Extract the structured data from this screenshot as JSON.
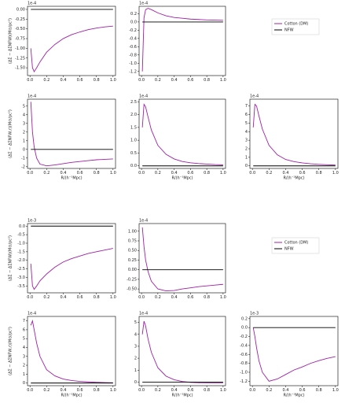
{
  "chart_data": [
    {
      "type": "line",
      "offset": "1e-4",
      "ylabel": "(ΔΣ − ΔΣNFW)(M⊙/pc²)",
      "x": [
        0.01,
        0.03,
        0.05,
        0.08,
        0.12,
        0.2,
        0.3,
        0.4,
        0.5,
        0.6,
        0.7,
        0.8,
        0.9,
        1.0
      ],
      "series": [
        {
          "name": "Cotton (DM)",
          "color": "#a020a8",
          "values": [
            -1.0,
            -1.5,
            -1.6,
            -1.5,
            -1.35,
            -1.1,
            -0.9,
            -0.75,
            -0.65,
            -0.58,
            -0.52,
            -0.48,
            -0.45,
            -0.43
          ]
        },
        {
          "name": "NFW",
          "color": "#000000",
          "values": [
            0,
            0,
            0,
            0,
            0,
            0,
            0,
            0,
            0,
            0,
            0,
            0,
            0,
            0
          ]
        }
      ],
      "xlim": [
        -0.03,
        1.03
      ],
      "xticks": [
        {
          "value": 0,
          "label": "0.0"
        },
        0.2,
        0.4,
        0.6,
        0.8,
        {
          "value": 1,
          "label": "1.0"
        }
      ],
      "ylim": [
        -1.7,
        0.08
      ],
      "yticks": [
        {
          "value": 0,
          "label": "0.00"
        },
        -0.25,
        {
          "value": -0.5,
          "label": "-0.50"
        },
        -0.75,
        {
          "value": -1,
          "label": "-1.00"
        },
        -1.25,
        {
          "value": -1.5,
          "label": "-1.50"
        }
      ]
    },
    {
      "type": "line",
      "offset": "1e-4",
      "x": [
        0.01,
        0.03,
        0.05,
        0.08,
        0.12,
        0.2,
        0.3,
        0.4,
        0.5,
        0.6,
        0.7,
        0.8,
        0.9,
        1.0
      ],
      "series": [
        {
          "name": "Cotton (DM)",
          "color": "#a020a8",
          "values": [
            -1.2,
            0.1,
            0.3,
            0.33,
            0.3,
            0.22,
            0.15,
            0.11,
            0.09,
            0.07,
            0.06,
            0.05,
            0.045,
            0.04
          ]
        },
        {
          "name": "NFW",
          "color": "#000000",
          "values": [
            0,
            0,
            0,
            0,
            0,
            0,
            0,
            0,
            0,
            0,
            0,
            0,
            0,
            0
          ]
        }
      ],
      "xlim": [
        -0.03,
        1.03
      ],
      "xticks": [
        {
          "value": 0,
          "label": "0.0"
        },
        0.2,
        0.4,
        0.6,
        0.8,
        {
          "value": 1,
          "label": "1.0"
        }
      ],
      "ylim": [
        -1.3,
        0.38
      ],
      "yticks": [
        0.2,
        {
          "value": 0,
          "label": "0.0"
        },
        -0.2,
        -0.4,
        -0.6,
        -0.8,
        {
          "value": -1,
          "label": "-1.0"
        },
        -1.2
      ]
    },
    {
      "type": "line",
      "offset": "1e-4",
      "ylabel": "(ΔΣ − ΔΣNFW,r)(M⊙/pc²)",
      "xlabel": "R/(h⁻¹Mpc)",
      "x": [
        0.01,
        0.03,
        0.05,
        0.08,
        0.12,
        0.2,
        0.3,
        0.4,
        0.5,
        0.6,
        0.7,
        0.8,
        0.9,
        1.0
      ],
      "series": [
        {
          "name": "Cotton (DM)",
          "color": "#a020a8",
          "values": [
            5.5,
            2.0,
            0.3,
            -1.0,
            -1.7,
            -1.9,
            -1.8,
            -1.65,
            -1.5,
            -1.4,
            -1.3,
            -1.2,
            -1.15,
            -1.1
          ]
        },
        {
          "name": "NFW",
          "color": "#000000",
          "values": [
            0,
            0,
            0,
            0,
            0,
            0,
            0,
            0,
            0,
            0,
            0,
            0,
            0,
            0
          ]
        }
      ],
      "xlim": [
        -0.03,
        1.03
      ],
      "xticks": [
        {
          "value": 0,
          "label": "0.0"
        },
        0.2,
        0.4,
        0.6,
        0.8,
        {
          "value": 1,
          "label": "1.0"
        }
      ],
      "ylim": [
        -2.2,
        5.8
      ],
      "yticks": [
        -2,
        -1,
        0,
        1,
        2,
        3,
        4,
        5
      ]
    },
    {
      "type": "line",
      "offset": "1e-4",
      "xlabel": "R/(h⁻¹Mpc)",
      "x": [
        0.01,
        0.03,
        0.05,
        0.08,
        0.12,
        0.2,
        0.3,
        0.4,
        0.5,
        0.6,
        0.7,
        0.8,
        0.9,
        1.0
      ],
      "series": [
        {
          "name": "Cotton (DM)",
          "color": "#a020a8",
          "values": [
            1.5,
            2.4,
            2.3,
            1.9,
            1.4,
            0.8,
            0.45,
            0.27,
            0.17,
            0.12,
            0.09,
            0.07,
            0.05,
            0.04
          ]
        },
        {
          "name": "NFW",
          "color": "#000000",
          "values": [
            0,
            0,
            0,
            0,
            0,
            0,
            0,
            0,
            0,
            0,
            0,
            0,
            0,
            0
          ]
        }
      ],
      "xlim": [
        -0.03,
        1.03
      ],
      "xticks": [
        {
          "value": 0,
          "label": "0.0"
        },
        0.2,
        0.4,
        0.6,
        0.8,
        {
          "value": 1,
          "label": "1.0"
        }
      ],
      "ylim": [
        -0.1,
        2.6
      ],
      "yticks": [
        {
          "value": 0,
          "label": "0.0"
        },
        0.5,
        {
          "value": 1,
          "label": "1.0"
        },
        1.5,
        {
          "value": 2,
          "label": "2.0"
        },
        2.5
      ]
    },
    {
      "type": "line",
      "offset": "1e-4",
      "xlabel": "R/(h⁻¹Mpc)",
      "x": [
        0.01,
        0.03,
        0.05,
        0.08,
        0.12,
        0.2,
        0.3,
        0.4,
        0.5,
        0.6,
        0.7,
        0.8,
        0.9,
        1.0
      ],
      "series": [
        {
          "name": "Cotton (DM)",
          "color": "#a020a8",
          "values": [
            4.5,
            7.2,
            7.0,
            5.8,
            4.3,
            2.4,
            1.3,
            0.75,
            0.5,
            0.35,
            0.25,
            0.18,
            0.13,
            0.1
          ]
        },
        {
          "name": "NFW",
          "color": "#000000",
          "values": [
            0,
            0,
            0,
            0,
            0,
            0,
            0,
            0,
            0,
            0,
            0,
            0,
            0,
            0
          ]
        }
      ],
      "xlim": [
        -0.03,
        1.03
      ],
      "xticks": [
        {
          "value": 0,
          "label": "0.0"
        },
        0.2,
        0.4,
        0.6,
        0.8,
        {
          "value": 1,
          "label": "1.0"
        }
      ],
      "ylim": [
        -0.3,
        7.8
      ],
      "yticks": [
        0,
        1,
        2,
        3,
        4,
        5,
        6,
        7
      ]
    },
    {
      "type": "line",
      "offset": "1e-3",
      "ylabel": "(ΔΣ − ΔΣNFW)(M⊙/pc²)",
      "x": [
        0.01,
        0.03,
        0.05,
        0.08,
        0.12,
        0.2,
        0.3,
        0.4,
        0.5,
        0.6,
        0.7,
        0.8,
        0.9,
        1.0
      ],
      "series": [
        {
          "name": "Cotton (DM)",
          "color": "#a020a8",
          "values": [
            -2.2,
            -3.5,
            -3.7,
            -3.5,
            -3.2,
            -2.8,
            -2.4,
            -2.1,
            -1.9,
            -1.75,
            -1.6,
            -1.5,
            -1.4,
            -1.3
          ]
        },
        {
          "name": "NFW",
          "color": "#000000",
          "values": [
            0,
            0,
            0,
            0,
            0,
            0,
            0,
            0,
            0,
            0,
            0,
            0,
            0,
            0
          ]
        }
      ],
      "xlim": [
        -0.03,
        1.03
      ],
      "xticks": [
        {
          "value": 0,
          "label": "0.0"
        },
        0.2,
        0.4,
        0.6,
        0.8,
        {
          "value": 1,
          "label": "1.0"
        }
      ],
      "ylim": [
        -3.9,
        0.15
      ],
      "yticks": [
        {
          "value": 0,
          "label": "0.0"
        },
        -0.5,
        {
          "value": -1,
          "label": "-1.0"
        },
        -1.5,
        {
          "value": -2,
          "label": "-2.0"
        },
        -2.5,
        {
          "value": -3,
          "label": "-3.0"
        },
        -3.5
      ]
    },
    {
      "type": "line",
      "offset": "1e-4",
      "x": [
        0.01,
        0.03,
        0.05,
        0.08,
        0.12,
        0.2,
        0.3,
        0.4,
        0.5,
        0.6,
        0.7,
        0.8,
        0.9,
        1.0
      ],
      "series": [
        {
          "name": "Cotton (DM)",
          "color": "#a020a8",
          "values": [
            1.1,
            0.6,
            0.25,
            -0.05,
            -0.3,
            -0.5,
            -0.55,
            -0.54,
            -0.5,
            -0.47,
            -0.44,
            -0.42,
            -0.4,
            -0.38
          ]
        },
        {
          "name": "NFW",
          "color": "#000000",
          "values": [
            0,
            0,
            0,
            0,
            0,
            0,
            0,
            0,
            0,
            0,
            0,
            0,
            0,
            0
          ]
        }
      ],
      "xlim": [
        -0.03,
        1.03
      ],
      "xticks": [
        {
          "value": 0,
          "label": "0.0"
        },
        0.2,
        0.4,
        0.6,
        0.8,
        {
          "value": 1,
          "label": "1.0"
        }
      ],
      "ylim": [
        -0.6,
        1.2
      ],
      "yticks": [
        {
          "value": -0.5,
          "label": "-0.50"
        },
        -0.25,
        {
          "value": 0,
          "label": "0.00"
        },
        0.25,
        {
          "value": 0.5,
          "label": "0.50"
        },
        0.75,
        {
          "value": 1,
          "label": "1.00"
        }
      ]
    },
    {
      "type": "line",
      "offset": "1e-4",
      "ylabel": "(ΔΣ − ΔΣNFW,r)(M⊙/pc²)",
      "xlabel": "R/(h⁻¹Mpc)",
      "x": [
        0.01,
        0.03,
        0.05,
        0.08,
        0.12,
        0.2,
        0.3,
        0.4,
        0.5,
        0.6,
        0.7,
        0.8,
        0.9,
        1.0
      ],
      "series": [
        {
          "name": "Cotton (DM)",
          "color": "#a020a8",
          "values": [
            6.5,
            7.0,
            6.0,
            4.5,
            3.0,
            1.5,
            0.8,
            0.45,
            0.28,
            0.18,
            0.12,
            0.08,
            0.05,
            0.03
          ]
        },
        {
          "name": "NFW",
          "color": "#000000",
          "values": [
            0,
            0,
            0,
            0,
            0,
            0,
            0,
            0,
            0,
            0,
            0,
            0,
            0,
            0
          ]
        }
      ],
      "xlim": [
        -0.03,
        1.03
      ],
      "xticks": [
        {
          "value": 0,
          "label": "0.0"
        },
        0.2,
        0.4,
        0.6,
        0.8,
        {
          "value": 1,
          "label": "1.0"
        }
      ],
      "ylim": [
        -0.3,
        7.5
      ],
      "yticks": [
        0,
        1,
        2,
        3,
        4,
        5,
        6,
        7
      ]
    },
    {
      "type": "line",
      "offset": "1e-4",
      "xlabel": "R/(h⁻¹Mpc)",
      "x": [
        0.01,
        0.03,
        0.05,
        0.08,
        0.12,
        0.2,
        0.3,
        0.4,
        0.5,
        0.6,
        0.7,
        0.8,
        0.9,
        1.0
      ],
      "series": [
        {
          "name": "Cotton (DM)",
          "color": "#a020a8",
          "values": [
            4.0,
            5.1,
            4.7,
            3.6,
            2.5,
            1.2,
            0.5,
            0.2,
            0.05,
            -0.02,
            -0.05,
            -0.06,
            -0.06,
            -0.06
          ]
        },
        {
          "name": "NFW",
          "color": "#000000",
          "values": [
            0,
            0,
            0,
            0,
            0,
            0,
            0,
            0,
            0,
            0,
            0,
            0,
            0,
            0
          ]
        }
      ],
      "xlim": [
        -0.03,
        1.03
      ],
      "xticks": [
        {
          "value": 0,
          "label": "0.0"
        },
        0.2,
        0.4,
        0.6,
        0.8,
        {
          "value": 1,
          "label": "1.0"
        }
      ],
      "ylim": [
        -0.3,
        5.5
      ],
      "yticks": [
        0,
        1,
        2,
        3,
        4,
        5
      ]
    },
    {
      "type": "line",
      "offset": "1e-3",
      "xlabel": "R/(h⁻¹Mpc)",
      "x": [
        0.01,
        0.03,
        0.05,
        0.08,
        0.12,
        0.2,
        0.3,
        0.4,
        0.5,
        0.6,
        0.7,
        0.8,
        0.9,
        1.0
      ],
      "series": [
        {
          "name": "Cotton (DM)",
          "color": "#a020a8",
          "values": [
            0.0,
            -0.2,
            -0.45,
            -0.75,
            -1.0,
            -1.2,
            -1.15,
            -1.05,
            -0.95,
            -0.88,
            -0.8,
            -0.74,
            -0.69,
            -0.65
          ]
        },
        {
          "name": "NFW",
          "color": "#000000",
          "values": [
            0,
            0,
            0,
            0,
            0,
            0,
            0,
            0,
            0,
            0,
            0,
            0,
            0,
            0
          ]
        }
      ],
      "xlim": [
        -0.03,
        1.03
      ],
      "xticks": [
        {
          "value": 0,
          "label": "0.0"
        },
        0.2,
        0.4,
        0.6,
        0.8,
        {
          "value": 1,
          "label": "1.0"
        }
      ],
      "ylim": [
        -1.3,
        0.25
      ],
      "yticks": [
        0.2,
        {
          "value": 0,
          "label": "0.0"
        },
        -0.2,
        -0.4,
        -0.6,
        -0.8,
        {
          "value": -1,
          "label": "-1.0"
        },
        -1.2
      ]
    }
  ]
}
